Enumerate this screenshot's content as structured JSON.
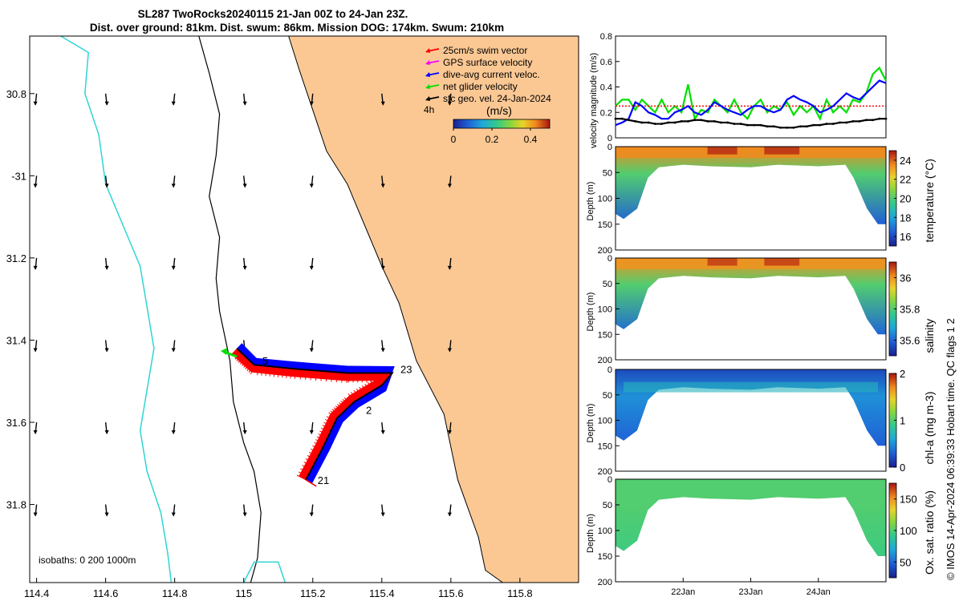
{
  "header": {
    "title": "SL287 TwoRocks20240115 21-Jan 00Z to 24-Jan 23Z.",
    "subtitle": "Dist. over ground: 81km. Dist. swum: 86km. Mission DOG: 174km. Swum: 210km"
  },
  "colors": {
    "land": "#fbc894",
    "coast": "#000000",
    "isobath_200": "#000000",
    "isobath_1000": "#2fd5d5",
    "swim_vector": "#ff0000",
    "gps_velocity": "#ff00ff",
    "current": "#0000ff",
    "glider": "#00e000",
    "geo_velocity": "#000000"
  },
  "chart_data": [
    {
      "id": "map",
      "type": "scatter",
      "xlim": [
        114.38,
        115.97
      ],
      "ylim": [
        -31.99,
        -30.66
      ],
      "x_ticks": [
        114.4,
        114.6,
        114.8,
        115,
        115.2,
        115.4,
        115.6,
        115.8
      ],
      "x_tick_labels": [
        "114.4",
        "114.6",
        "114.8",
        "115",
        "115.2",
        "115.4",
        "115.6",
        "115.8"
      ],
      "y_ticks": [
        -30.8,
        -31,
        -31.2,
        -31.4,
        -31.6,
        -31.8
      ],
      "y_tick_labels": [
        "30.8",
        "-31",
        "31.2",
        "31.4",
        "31.6",
        "31.8"
      ],
      "legend": [
        {
          "label": "25cm/s swim vector",
          "color": "#ff0000"
        },
        {
          "label": "GPS surface velocity",
          "color": "#ff00ff"
        },
        {
          "label": "dive-avg current veloc.",
          "color": "#0000ff"
        },
        {
          "label": "net glider velocity",
          "color": "#00e000"
        },
        {
          "label": "sfc geo. vel. 24-Jan-2024",
          "color": "#000000"
        }
      ],
      "legend_placement": "top-right",
      "time_step_label": "4h",
      "colorbar": {
        "label": "(m/s)",
        "ticks": [
          0,
          0.2,
          0.4
        ],
        "tick_labels": [
          "0",
          "0.2",
          "0.4"
        ],
        "range": [
          0,
          0.5
        ]
      },
      "isobaths_label": "isobaths: 0   200  1000m",
      "track": [
        {
          "lon": 115.18,
          "lat": -31.74
        },
        {
          "lon": 115.23,
          "lat": -31.66
        },
        {
          "lon": 115.27,
          "lat": -31.59
        },
        {
          "lon": 115.32,
          "lat": -31.55
        },
        {
          "lon": 115.4,
          "lat": -31.51
        },
        {
          "lon": 115.43,
          "lat": -31.48
        },
        {
          "lon": 115.3,
          "lat": -31.48
        },
        {
          "lon": 115.15,
          "lat": -31.47
        },
        {
          "lon": 115.03,
          "lat": -31.46
        },
        {
          "lon": 114.98,
          "lat": -31.42
        }
      ],
      "day_labels": [
        {
          "text": "21",
          "lon": 115.2,
          "lat": -31.74
        },
        {
          "text": "2",
          "lon": 115.34,
          "lat": -31.57
        },
        {
          "text": "23",
          "lon": 115.44,
          "lat": -31.47
        },
        {
          "text": "5",
          "lon": 115.04,
          "lat": -31.45
        }
      ],
      "net_glider_velocity": {
        "lon": 114.98,
        "lat": -31.44,
        "u": -0.04,
        "v": 0.015
      },
      "geo_velocity_grid": {
        "lons": [
          114.4,
          114.6,
          114.8,
          115,
          115.2,
          115.4,
          115.6
        ],
        "lats": [
          -30.8,
          -31,
          -31.2,
          -31.4,
          -31.6,
          -31.8
        ],
        "u_approx": 0.0,
        "v_approx": -0.15
      }
    },
    {
      "id": "velocity",
      "type": "line",
      "ylabel": "velocity magnitude (m/s)",
      "ylim": [
        0,
        0.8
      ],
      "y_ticks": [
        0,
        0.2,
        0.4,
        0.6,
        0.8
      ],
      "x_range_days": [
        21.0,
        25.0
      ],
      "series": [
        {
          "color": "#00e000",
          "values": [
            0.25,
            0.3,
            0.3,
            0.22,
            0.3,
            0.25,
            0.2,
            0.3,
            0.2,
            0.25,
            0.2,
            0.42,
            0.15,
            0.22,
            0.2,
            0.3,
            0.25,
            0.2,
            0.3,
            0.2,
            0.15,
            0.25,
            0.3,
            0.2,
            0.25,
            0.22,
            0.28,
            0.18,
            0.25,
            0.2,
            0.25,
            0.15,
            0.3,
            0.2,
            0.25,
            0.2,
            0.3,
            0.28,
            0.35,
            0.5,
            0.55,
            0.45
          ]
        },
        {
          "color": "#ff0000",
          "values": [
            0.25,
            0.25,
            0.25,
            0.25,
            0.25,
            0.25,
            0.25,
            0.25,
            0.25,
            0.25,
            0.25,
            0.25,
            0.25,
            0.25,
            0.25,
            0.25,
            0.25,
            0.25,
            0.25,
            0.25,
            0.25,
            0.25,
            0.25,
            0.25,
            0.25,
            0.25,
            0.25,
            0.25,
            0.25,
            0.25,
            0.25,
            0.25,
            0.25,
            0.25,
            0.25,
            0.25,
            0.25,
            0.25,
            0.25,
            0.25,
            0.25,
            0.25
          ]
        },
        {
          "color": "#0000ff",
          "values": [
            0.1,
            0.12,
            0.15,
            0.28,
            0.25,
            0.2,
            0.18,
            0.15,
            0.15,
            0.2,
            0.22,
            0.25,
            0.2,
            0.18,
            0.22,
            0.28,
            0.25,
            0.22,
            0.2,
            0.18,
            0.22,
            0.25,
            0.25,
            0.22,
            0.2,
            0.22,
            0.3,
            0.33,
            0.3,
            0.28,
            0.25,
            0.2,
            0.22,
            0.25,
            0.3,
            0.35,
            0.32,
            0.3,
            0.35,
            0.4,
            0.45,
            0.43
          ]
        },
        {
          "color": "#000000",
          "values": [
            0.15,
            0.15,
            0.14,
            0.13,
            0.12,
            0.12,
            0.11,
            0.11,
            0.12,
            0.12,
            0.13,
            0.13,
            0.14,
            0.14,
            0.13,
            0.13,
            0.12,
            0.12,
            0.11,
            0.11,
            0.1,
            0.1,
            0.1,
            0.09,
            0.09,
            0.08,
            0.08,
            0.08,
            0.09,
            0.09,
            0.1,
            0.1,
            0.11,
            0.11,
            0.12,
            0.12,
            0.13,
            0.13,
            0.14,
            0.14,
            0.15,
            0.15
          ]
        }
      ]
    },
    {
      "id": "temperature",
      "type": "heatmap",
      "ylabel": "Depth (m)",
      "ylim": [
        200,
        0
      ],
      "y_ticks": [
        0,
        50,
        100,
        150,
        200
      ],
      "colorbar_label": "temperature (°C)",
      "colorbar_ticks": [
        16,
        18,
        20,
        22,
        24
      ],
      "colorbar_range": [
        15,
        25
      ],
      "surface_value": 23.5,
      "deep_value": 16.5,
      "mid_value": 20
    },
    {
      "id": "salinity",
      "type": "heatmap",
      "ylabel": "Depth (m)",
      "ylim": [
        200,
        0
      ],
      "y_ticks": [
        0,
        50,
        100,
        150,
        200
      ],
      "colorbar_label": "salinity",
      "colorbar_ticks": [
        35.6,
        35.8,
        36
      ],
      "colorbar_tick_labels": [
        "35.6",
        "35.8",
        "36"
      ],
      "colorbar_range": [
        35.5,
        36.1
      ],
      "surface_value": 36.0,
      "deep_value": 35.6,
      "mid_value": 35.8
    },
    {
      "id": "chla",
      "type": "heatmap",
      "ylabel": "Depth (m)",
      "ylim": [
        200,
        0
      ],
      "y_ticks": [
        0,
        50,
        100,
        150,
        200
      ],
      "colorbar_label": "chl-a (mg m-3)",
      "colorbar_ticks": [
        0,
        1,
        2
      ],
      "colorbar_range": [
        0,
        2
      ],
      "surface_value": 0.2,
      "deep_value": 0.3,
      "mid_value": 0.5
    },
    {
      "id": "oxygen",
      "type": "heatmap",
      "ylabel": "Depth (m)",
      "ylim": [
        200,
        0
      ],
      "y_ticks": [
        0,
        50,
        100,
        150,
        200
      ],
      "colorbar_label": "Ox. sat. ratio (%)",
      "colorbar_ticks": [
        50,
        100,
        150
      ],
      "colorbar_range": [
        25,
        175
      ],
      "surface_value": 100,
      "deep_value": 95,
      "mid_value": 100,
      "x_tick_labels": [
        "22Jan",
        "23Jan",
        "24Jan"
      ]
    }
  ],
  "side_note": "© IMOS 14-Apr-2024 06:39:33 Hobart time. QC flags 1  2"
}
